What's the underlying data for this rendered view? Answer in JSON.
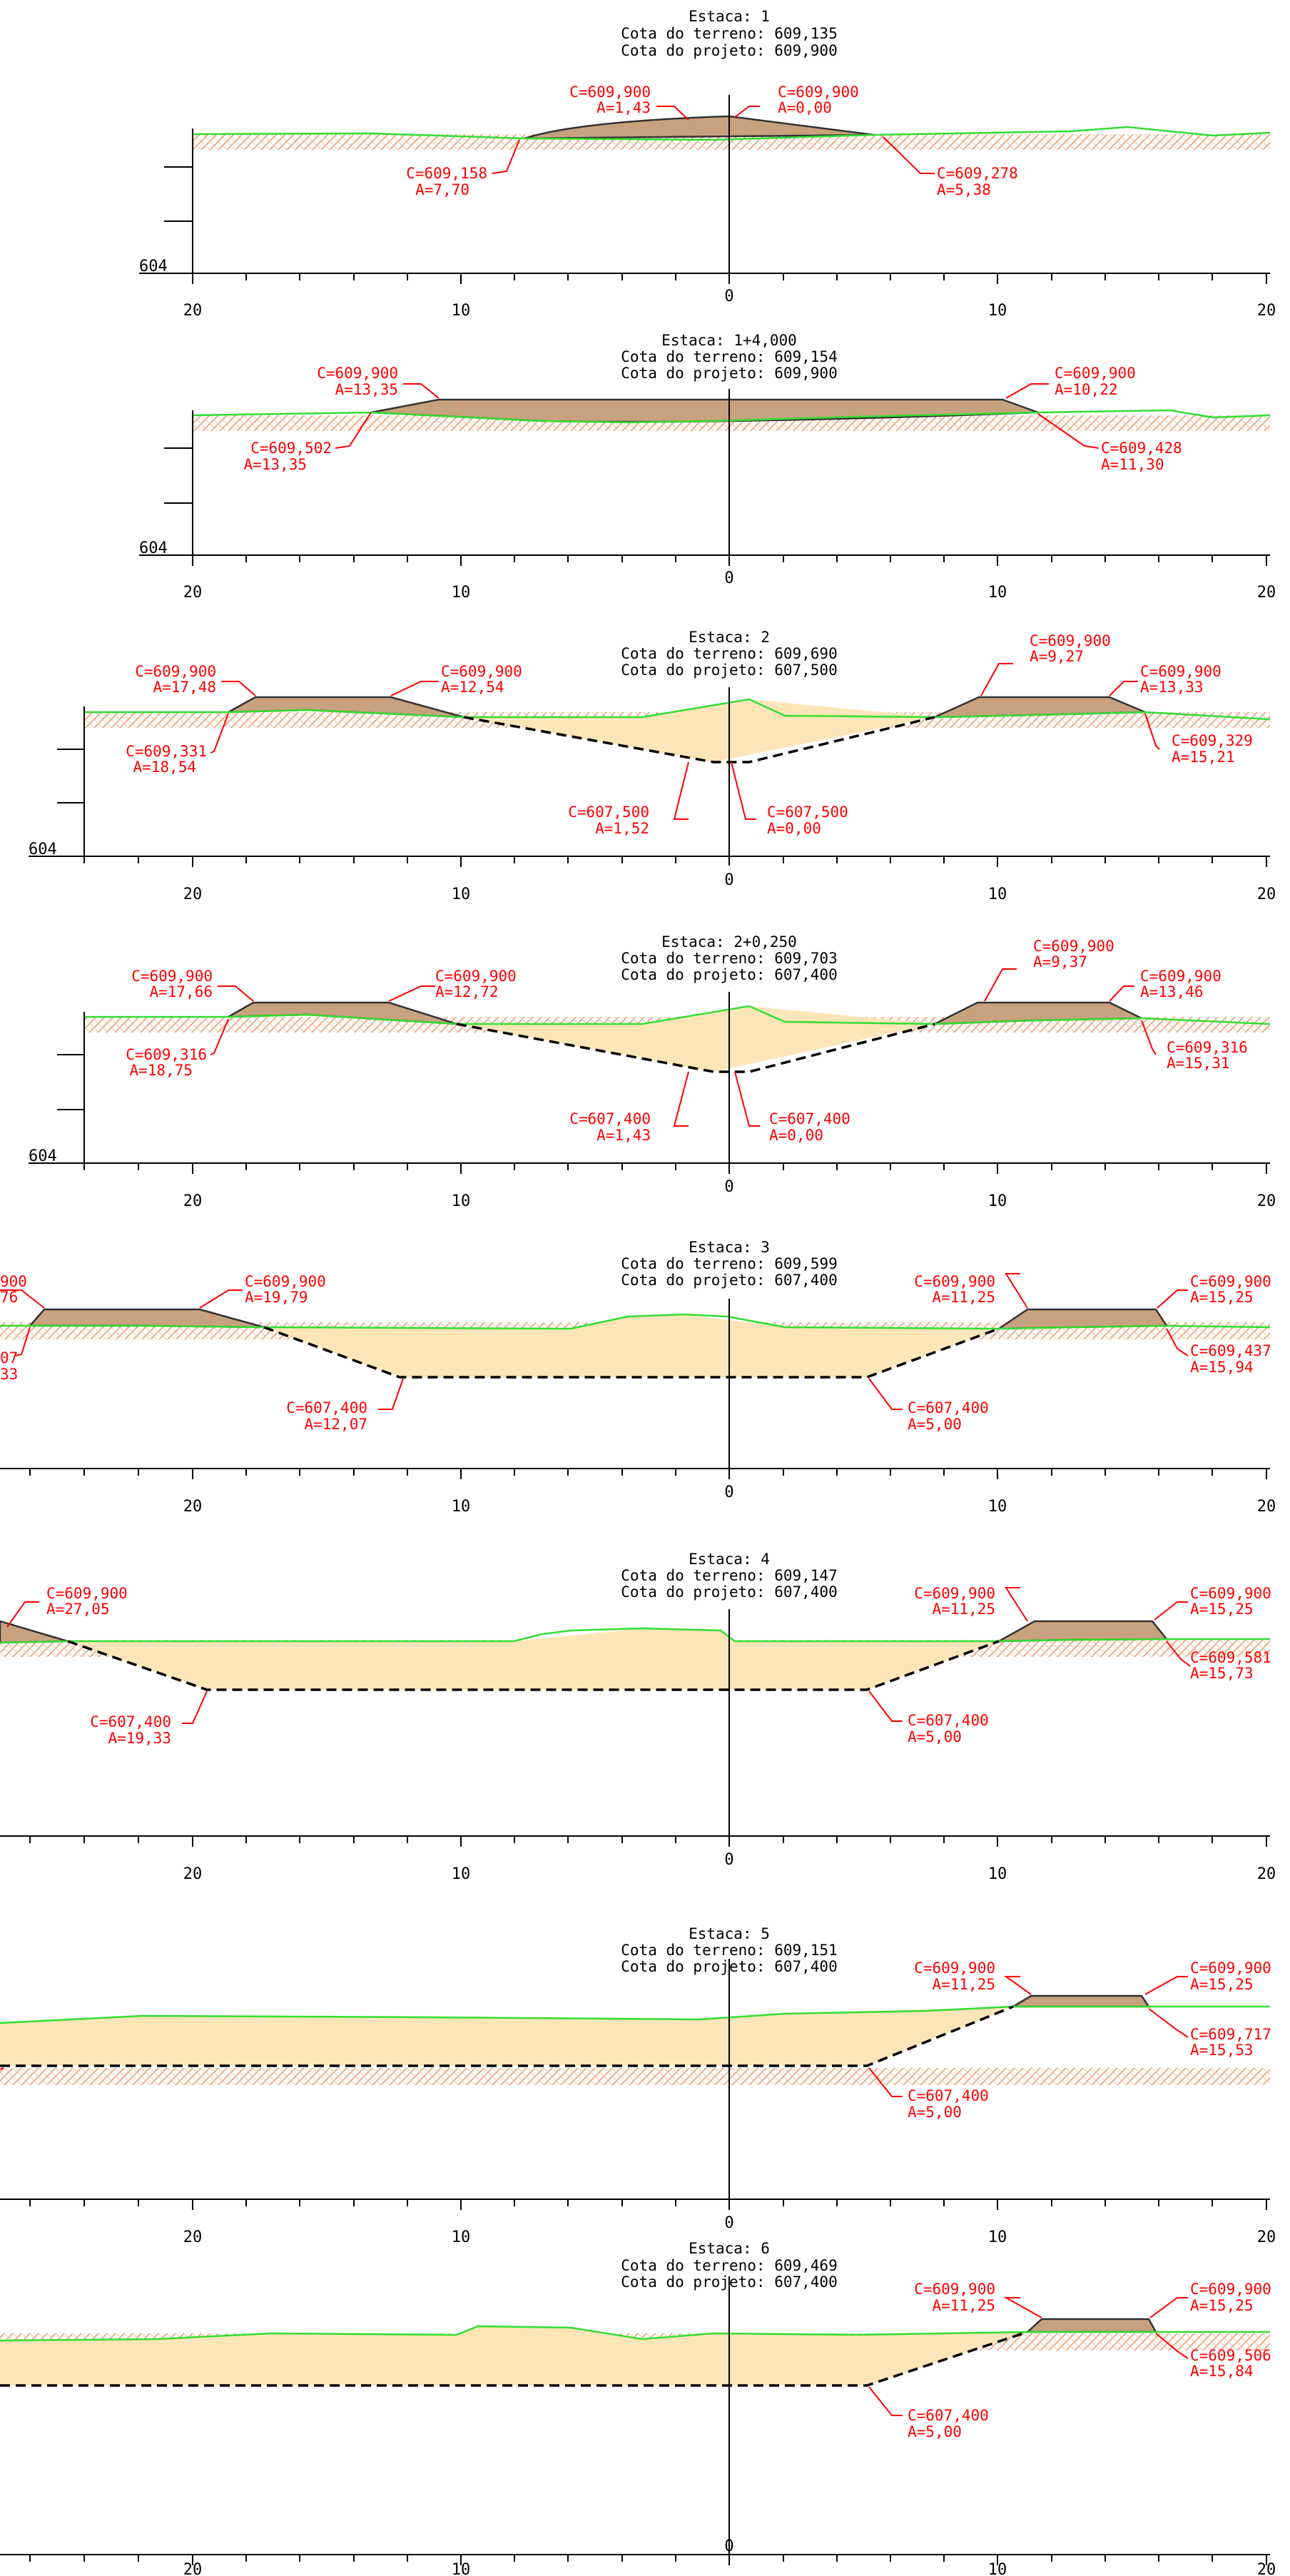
{
  "sections": [
    {
      "id": "s1",
      "title": "Estaca: 1",
      "terreno": "Cota do terreno: 609,135",
      "projeto": "Cota do projeto: 609,900",
      "elev_label": "604",
      "ticks": [
        {
          "label": "20",
          "x": -20
        },
        {
          "label": "10",
          "x": -10
        },
        {
          "label": "0",
          "x": 0
        },
        {
          "label": "10",
          "x": 10
        },
        {
          "label": "20",
          "x": 20
        }
      ],
      "annotations": [
        {
          "c": "C=609,900",
          "a": "A=1,43"
        },
        {
          "c": "C=609,900",
          "a": "A=0,00"
        },
        {
          "c": "C=609,158",
          "a": "A=7,70"
        },
        {
          "c": "C=609,278",
          "a": "A=5,38"
        }
      ]
    },
    {
      "id": "s2",
      "title": "Estaca: 1+4,000",
      "terreno": "Cota do terreno: 609,154",
      "projeto": "Cota do projeto: 609,900",
      "elev_label": "604",
      "ticks": [
        {
          "label": "20",
          "x": -20
        },
        {
          "label": "10",
          "x": -10
        },
        {
          "label": "0",
          "x": 0
        },
        {
          "label": "10",
          "x": 10
        },
        {
          "label": "20",
          "x": 20
        }
      ],
      "annotations": [
        {
          "c": "C=609,900",
          "a": "A=13,35"
        },
        {
          "c": "C=609,900",
          "a": "A=10,22"
        },
        {
          "c": "C=609,502",
          "a": "A=13,35"
        },
        {
          "c": "C=609,428",
          "a": "A=11,30"
        }
      ]
    },
    {
      "id": "s3",
      "title": "Estaca: 2",
      "terreno": "Cota do terreno: 609,690",
      "projeto": "Cota do projeto: 607,500",
      "elev_label": "604",
      "ticks": [
        {
          "label": "20",
          "x": -20
        },
        {
          "label": "10",
          "x": -10
        },
        {
          "label": "0",
          "x": 0
        },
        {
          "label": "10",
          "x": 10
        },
        {
          "label": "20",
          "x": 20
        }
      ],
      "annotations": [
        {
          "c": "C=609,900",
          "a": "A=17,48"
        },
        {
          "c": "C=609,900",
          "a": "A=12,54"
        },
        {
          "c": "C=609,900",
          "a": "A=9,27"
        },
        {
          "c": "C=609,900",
          "a": "A=13,33"
        },
        {
          "c": "C=609,331",
          "a": "A=18,54"
        },
        {
          "c": "C=609,329",
          "a": "A=15,21"
        },
        {
          "c": "C=607,500",
          "a": "A=1,52"
        },
        {
          "c": "C=607,500",
          "a": "A=0,00"
        }
      ]
    },
    {
      "id": "s4",
      "title": "Estaca: 2+0,250",
      "terreno": "Cota do terreno: 609,703",
      "projeto": "Cota do projeto: 607,400",
      "elev_label": "604",
      "ticks": [
        {
          "label": "20",
          "x": -20
        },
        {
          "label": "10",
          "x": -10
        },
        {
          "label": "0",
          "x": 0
        },
        {
          "label": "10",
          "x": 10
        },
        {
          "label": "20",
          "x": 20
        }
      ],
      "annotations": [
        {
          "c": "C=609,900",
          "a": "A=17,66"
        },
        {
          "c": "C=609,900",
          "a": "A=12,72"
        },
        {
          "c": "C=609,900",
          "a": "A=9,37"
        },
        {
          "c": "C=609,900",
          "a": "A=13,46"
        },
        {
          "c": "C=609,316",
          "a": "A=18,75"
        },
        {
          "c": "C=609,316",
          "a": "A=15,31"
        },
        {
          "c": "C=607,400",
          "a": "A=1,43"
        },
        {
          "c": "C=607,400",
          "a": "A=0,00"
        }
      ]
    },
    {
      "id": "s5",
      "title": "Estaca: 3",
      "terreno": "Cota do terreno: 609,599",
      "projeto": "Cota do projeto: 607,400",
      "ticks": [
        {
          "label": "20",
          "x": -20
        },
        {
          "label": "10",
          "x": -10
        },
        {
          "label": "0",
          "x": 0
        },
        {
          "label": "10",
          "x": 10
        },
        {
          "label": "20",
          "x": 20
        }
      ],
      "annotations": [
        {
          "c": "900",
          "a": "76"
        },
        {
          "c": "C=609,900",
          "a": "A=19,79"
        },
        {
          "c": "C=609,900",
          "a": "A=11,25"
        },
        {
          "c": "C=609,900",
          "a": "A=15,25"
        },
        {
          "c": "07",
          "a": "33"
        },
        {
          "c": "C=609,437",
          "a": "A=15,94"
        },
        {
          "c": "C=607,400",
          "a": "A=12,07"
        },
        {
          "c": "C=607,400",
          "a": "A=5,00"
        }
      ]
    },
    {
      "id": "s6",
      "title": "Estaca: 4",
      "terreno": "Cota do terreno: 609,147",
      "projeto": "Cota do projeto: 607,400",
      "ticks": [
        {
          "label": "20",
          "x": -20
        },
        {
          "label": "10",
          "x": -10
        },
        {
          "label": "0",
          "x": 0
        },
        {
          "label": "10",
          "x": 10
        },
        {
          "label": "20",
          "x": 20
        }
      ],
      "annotations": [
        {
          "c": "C=609,900",
          "a": "A=27,05"
        },
        {
          "c": "C=609,900",
          "a": "A=11,25"
        },
        {
          "c": "C=609,900",
          "a": "A=15,25"
        },
        {
          "c": "C=609,581",
          "a": "A=15,73"
        },
        {
          "c": "C=607,400",
          "a": "A=19,33"
        },
        {
          "c": "C=607,400",
          "a": "A=5,00"
        }
      ]
    },
    {
      "id": "s7",
      "title": "Estaca: 5",
      "terreno": "Cota do terreno: 609,151",
      "projeto": "Cota do projeto: 607,400",
      "ticks": [
        {
          "label": "20",
          "x": -20
        },
        {
          "label": "10",
          "x": -10
        },
        {
          "label": "0",
          "x": 0
        },
        {
          "label": "10",
          "x": 10
        },
        {
          "label": "20",
          "x": 20
        }
      ],
      "annotations": [
        {
          "c": "C=609,900",
          "a": "A=11,25"
        },
        {
          "c": "C=609,900",
          "a": "A=15,25"
        },
        {
          "c": "C=609,717",
          "a": "A=15,53"
        },
        {
          "c": "C=607,400",
          "a": "A=5,00"
        }
      ]
    },
    {
      "id": "s8",
      "title": "Estaca: 6",
      "terreno": "Cota do terreno: 609,469",
      "projeto": "Cota do projeto: 607,400",
      "ticks": [
        {
          "label": "20",
          "x": -20
        },
        {
          "label": "10",
          "x": -10
        },
        {
          "label": "0",
          "x": 0
        },
        {
          "label": "10",
          "x": 10
        },
        {
          "label": "20",
          "x": 20
        }
      ],
      "annotations": [
        {
          "c": "C=609,900",
          "a": "A=11,25"
        },
        {
          "c": "C=609,900",
          "a": "A=15,25"
        },
        {
          "c": "C=609,506",
          "a": "A=15,84"
        },
        {
          "c": "C=607,400",
          "a": "A=5,00"
        }
      ]
    }
  ]
}
